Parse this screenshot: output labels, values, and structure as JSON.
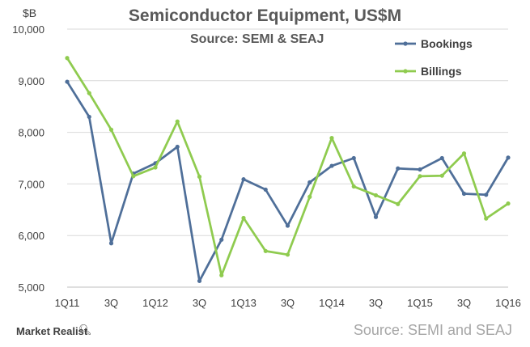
{
  "header": {
    "title": "Semiconductor Equipment, US$M",
    "subtitle": "Source: SEMI & SEAJ",
    "unit": "$B"
  },
  "footer": {
    "brand": "Market Realist",
    "brand_icon": "magnifier-icon",
    "source": "Source: SEMI and SEAJ"
  },
  "chart_data": {
    "type": "line",
    "title": "Semiconductor Equipment, US$M",
    "subtitle": "Source: SEMI & SEAJ",
    "ylabel": "$B",
    "xlabel": "",
    "ylim": [
      5000,
      10000
    ],
    "yticks": [
      5000,
      6000,
      7000,
      8000,
      9000,
      10000
    ],
    "ytick_labels": [
      "5,000",
      "6,000",
      "7,000",
      "8,000",
      "9,000",
      "10,000"
    ],
    "x_tick_labels": [
      {
        "index": 0,
        "label": "1Q11"
      },
      {
        "index": 2,
        "label": "3Q"
      },
      {
        "index": 4,
        "label": "1Q12"
      },
      {
        "index": 6,
        "label": "3Q"
      },
      {
        "index": 8,
        "label": "1Q13"
      },
      {
        "index": 10,
        "label": "3Q"
      },
      {
        "index": 12,
        "label": "1Q14"
      },
      {
        "index": 14,
        "label": "3Q"
      },
      {
        "index": 16,
        "label": "1Q15"
      },
      {
        "index": 18,
        "label": "3Q"
      },
      {
        "index": 20,
        "label": "1Q16"
      }
    ],
    "grid": true,
    "legend_position": "top-right",
    "series": [
      {
        "name": "Bookings",
        "color": "#4f6f99",
        "values": [
          8980,
          8300,
          5850,
          7200,
          7400,
          7720,
          5120,
          5920,
          7090,
          6890,
          6190,
          7030,
          7350,
          7500,
          6360,
          7300,
          7280,
          7500,
          6810,
          6790,
          7510
        ]
      },
      {
        "name": "Billings",
        "color": "#8fcb4f",
        "values": [
          9440,
          8760,
          8050,
          7150,
          7320,
          8210,
          7140,
          5230,
          6340,
          5700,
          5630,
          6750,
          7890,
          6950,
          6780,
          6610,
          7150,
          7160,
          7590,
          6330,
          6620
        ]
      }
    ]
  }
}
